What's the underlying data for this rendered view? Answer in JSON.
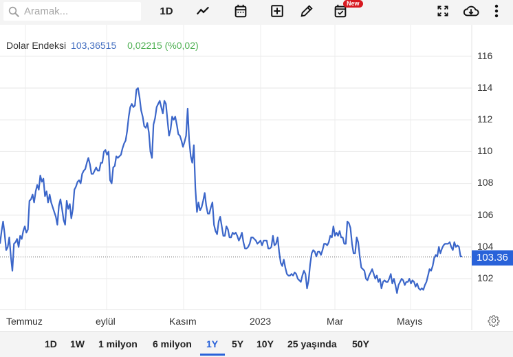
{
  "toolbar": {
    "search_placeholder": "Aramak...",
    "interval_label": "1D",
    "new_badge": "New",
    "icons": [
      "search-icon",
      "line-chart-icon",
      "calendar-icon",
      "add-box-icon",
      "pencil-icon",
      "calendar-check-icon",
      "fullscreen-icon",
      "cloud-download-icon",
      "more-vert-icon"
    ]
  },
  "legend": {
    "name": "Dolar Endeksi",
    "value": "103,36515",
    "change": "0,02215 (%0,02)",
    "value_color": "#3f6bbf",
    "change_color": "#4caf50"
  },
  "price_tag": {
    "label": "103.36",
    "color": "#2962d9"
  },
  "y_axis": {
    "ticks": [
      "116",
      "114",
      "112",
      "110",
      "108",
      "106",
      "104",
      "102"
    ]
  },
  "x_axis": {
    "ticks": [
      "Temmuz",
      "eylül",
      "Kasım",
      "2023",
      "Mar",
      "Mayıs"
    ]
  },
  "range_bar": {
    "options": [
      "1D",
      "1W",
      "1 milyon",
      "6 milyon",
      "1Y",
      "5Y",
      "10Y",
      "25 yaşında",
      "50Y"
    ],
    "active": "1Y"
  },
  "chart_data": {
    "type": "line",
    "title": "Dolar Endeksi",
    "xlabel": "",
    "ylabel": "",
    "ylim": [
      100.5,
      117.5
    ],
    "x_ticks": [
      "Temmuz",
      "eylül",
      "Kasım",
      "2023",
      "Mar",
      "Mayıs"
    ],
    "y_ticks": [
      102,
      104,
      106,
      108,
      110,
      112,
      114,
      116
    ],
    "last_value": 103.36515,
    "change": 0.02215,
    "change_pct": 0.02,
    "line_color": "#3b66c9",
    "grid": true,
    "series": [
      {
        "name": "Dolar Endeksi",
        "values": [
          104.2,
          105.0,
          105.6,
          104.8,
          103.8,
          104.0,
          104.6,
          103.4,
          102.5,
          104.2,
          104.3,
          104.5,
          104.0,
          104.7,
          104.5,
          105.0,
          105.3,
          104.9,
          105.1,
          106.9,
          107.0,
          107.3,
          106.8,
          107.5,
          107.9,
          107.6,
          108.5,
          108.1,
          108.3,
          107.2,
          107.5,
          106.8,
          107.3,
          106.8,
          106.5,
          106.2,
          105.9,
          105.4,
          106.6,
          107.0,
          106.4,
          105.7,
          105.4,
          106.9,
          106.4,
          106.7,
          105.8,
          106.4,
          107.6,
          107.8,
          108.1,
          108.2,
          108.0,
          108.6,
          108.8,
          108.9,
          109.3,
          109.6,
          109.2,
          108.6,
          108.6,
          108.8,
          109.0,
          108.8,
          108.8,
          109.3,
          109.3,
          110.0,
          110.1,
          109.8,
          110.0,
          108.2,
          108.0,
          109.0,
          109.1,
          109.7,
          109.6,
          109.7,
          109.8,
          110.2,
          110.5,
          110.7,
          111.3,
          112.2,
          112.8,
          113.0,
          112.8,
          112.9,
          113.9,
          114.0,
          113.4,
          112.6,
          112.2,
          111.6,
          111.5,
          111.8,
          111.2,
          110.0,
          109.6,
          111.7,
          112.1,
          112.8,
          113.0,
          113.2,
          112.8,
          112.4,
          113.2,
          113.0,
          112.0,
          111.0,
          111.4,
          112.2,
          112.0,
          112.2,
          111.7,
          111.1,
          111.0,
          110.7,
          110.3,
          110.6,
          111.0,
          112.7,
          110.7,
          109.7,
          109.3,
          110.4,
          107.7,
          106.2,
          106.8,
          106.3,
          106.5,
          106.9,
          107.4,
          106.6,
          106.1,
          106.1,
          106.5,
          106.8,
          105.4,
          105.0,
          104.8,
          105.6,
          105.9,
          105.3,
          104.7,
          104.7,
          105.3,
          105.1,
          104.6,
          104.6,
          104.9,
          104.8,
          104.9,
          104.7,
          104.4,
          104.6,
          104.9,
          104.3,
          103.9,
          103.9,
          104.0,
          104.2,
          104.6,
          104.6,
          104.5,
          104.4,
          104.2,
          104.3,
          104.4,
          104.1,
          104.4,
          104.4,
          104.4,
          103.9,
          103.9,
          104.0,
          104.7,
          104.1,
          104.2,
          104.6,
          103.7,
          103.0,
          102.8,
          103.2,
          102.7,
          102.3,
          102.2,
          102.2,
          102.3,
          102.2,
          102.4,
          102.3,
          102.0,
          101.9,
          101.8,
          102.2,
          102.5,
          102.3,
          101.4,
          101.9,
          102.9,
          103.6,
          103.8,
          103.7,
          103.4,
          103.7,
          103.7,
          103.5,
          103.8,
          104.2,
          104.2,
          104.1,
          104.3,
          104.7,
          104.6,
          105.3,
          104.7,
          104.9,
          104.7,
          105.0,
          104.6,
          104.6,
          104.2,
          104.2,
          105.6,
          105.5,
          105.2,
          104.2,
          103.6,
          103.6,
          104.6,
          104.3,
          103.4,
          102.7,
          102.6,
          102.5,
          102.0,
          101.9,
          102.2,
          102.4,
          102.6,
          102.3,
          102.0,
          102.2,
          101.8,
          102.0,
          101.4,
          101.8,
          101.9,
          101.8,
          101.8,
          102.0,
          102.3,
          101.7,
          102.0,
          101.6,
          101.1,
          101.6,
          101.8,
          102.0,
          101.9,
          101.6,
          101.8,
          101.8,
          102.0,
          101.7,
          101.9,
          101.8,
          101.5,
          101.7,
          101.4,
          101.3,
          101.4,
          101.3,
          101.6,
          101.8,
          102.2,
          102.6,
          102.5,
          102.8,
          103.3,
          103.5,
          103.4,
          104.0,
          103.6,
          103.9,
          104.1,
          104.2,
          104.2,
          104.2,
          104.3,
          104.0,
          103.8,
          104.3,
          104.0,
          104.1,
          104.0,
          103.4,
          103.4
        ]
      }
    ]
  }
}
